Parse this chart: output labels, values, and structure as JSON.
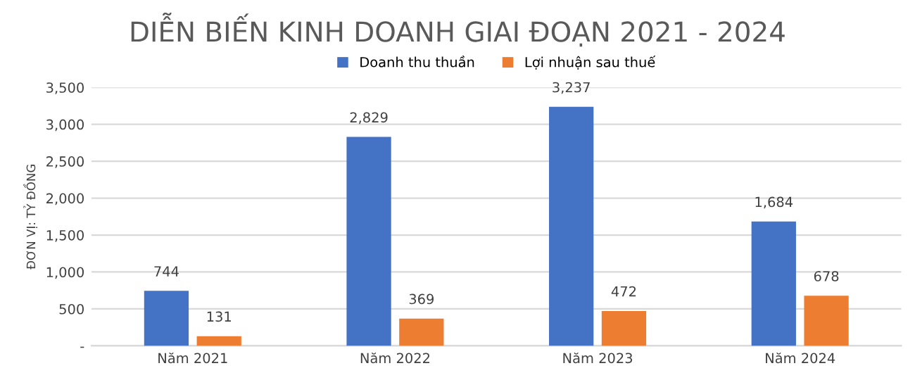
{
  "chart_data": {
    "type": "bar",
    "title": "DIỄN BIẾN KINH DOANH GIAI ĐOẠN 2021 - 2024",
    "ylabel": "ĐƠN VỊ: TỶ ĐỒNG",
    "categories": [
      "Năm 2021",
      "Năm 2022",
      "Năm 2023",
      "Năm 2024"
    ],
    "series": [
      {
        "name": "Doanh thu thuần",
        "color": "#4472c4",
        "values": [
          744,
          2829,
          3237,
          1684
        ],
        "value_labels": [
          "744",
          "2,829",
          "3,237",
          "1,684"
        ]
      },
      {
        "name": "Lợi nhuận sau thuế",
        "color": "#ed7d31",
        "values": [
          131,
          369,
          472,
          678
        ],
        "value_labels": [
          "131",
          "369",
          "472",
          "678"
        ]
      }
    ],
    "ylim": [
      0,
      3500
    ],
    "yticks": [
      {
        "value": 0,
        "label": "-"
      },
      {
        "value": 500,
        "label": "500"
      },
      {
        "value": 1000,
        "label": "1,000"
      },
      {
        "value": 1500,
        "label": "1,500"
      },
      {
        "value": 2000,
        "label": "2,000"
      },
      {
        "value": 2500,
        "label": "2,500"
      },
      {
        "value": 3000,
        "label": "3,000"
      },
      {
        "value": 3500,
        "label": "3,500"
      }
    ],
    "grid": "y",
    "legend": "top"
  }
}
